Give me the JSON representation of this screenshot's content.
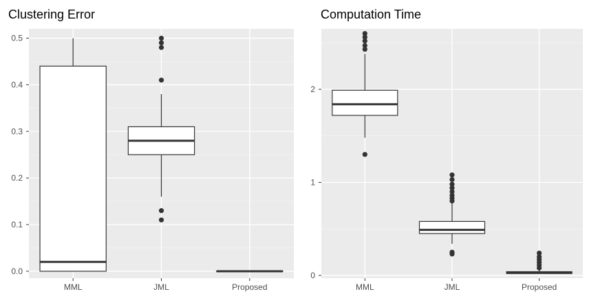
{
  "chart_data": [
    {
      "type": "box",
      "title": "Clustering Error",
      "categories": [
        "MML",
        "JML",
        "Proposed"
      ],
      "ylim": [
        -0.015,
        0.52
      ],
      "yticks": [
        "0.0",
        "0.1",
        "0.2",
        "0.3",
        "0.4",
        "0.5"
      ],
      "ytick_values": [
        0,
        0.1,
        0.2,
        0.3,
        0.4,
        0.5
      ],
      "grid": true,
      "boxes": [
        {
          "category": "MML",
          "min": 0.0,
          "q1": 0.0,
          "median": 0.02,
          "q3": 0.44,
          "max": 0.5,
          "outliers": []
        },
        {
          "category": "JML",
          "min": 0.16,
          "q1": 0.25,
          "median": 0.28,
          "q3": 0.31,
          "max": 0.38,
          "outliers": [
            0.41,
            0.48,
            0.49,
            0.5,
            0.13,
            0.11
          ]
        },
        {
          "category": "Proposed",
          "min": 0.0,
          "q1": 0.0,
          "median": 0.0,
          "q3": 0.0,
          "max": 0.0,
          "outliers": []
        }
      ]
    },
    {
      "type": "box",
      "title": "Computation Time",
      "categories": [
        "MML",
        "JML",
        "Proposed"
      ],
      "ylim": [
        -0.03,
        2.65
      ],
      "yticks": [
        "0",
        "1",
        "2"
      ],
      "ytick_values": [
        0,
        1,
        2
      ],
      "grid": true,
      "boxes": [
        {
          "category": "MML",
          "min": 1.48,
          "q1": 1.72,
          "median": 1.84,
          "q3": 1.99,
          "max": 2.38,
          "outliers": [
            2.43,
            2.47,
            2.52,
            2.56,
            2.6,
            1.3
          ]
        },
        {
          "category": "JML",
          "min": 0.34,
          "q1": 0.45,
          "median": 0.49,
          "q3": 0.58,
          "max": 0.78,
          "outliers": [
            0.8,
            0.83,
            0.86,
            0.9,
            0.94,
            0.98,
            1.03,
            1.08,
            0.23,
            0.25
          ]
        },
        {
          "category": "Proposed",
          "min": 0.02,
          "q1": 0.02,
          "median": 0.03,
          "q3": 0.04,
          "max": 0.06,
          "outliers": [
            0.08,
            0.11,
            0.14,
            0.17,
            0.2,
            0.24
          ]
        }
      ]
    }
  ],
  "colors": {
    "panel_background": "#ebebeb",
    "grid_major": "#ffffff",
    "grid_minor": "#f5f5f5",
    "box_fill": "#ffffff",
    "box_stroke": "#333333",
    "outlier": "#333333",
    "tick_text": "#4d4d4d",
    "title_text": "#000000"
  }
}
